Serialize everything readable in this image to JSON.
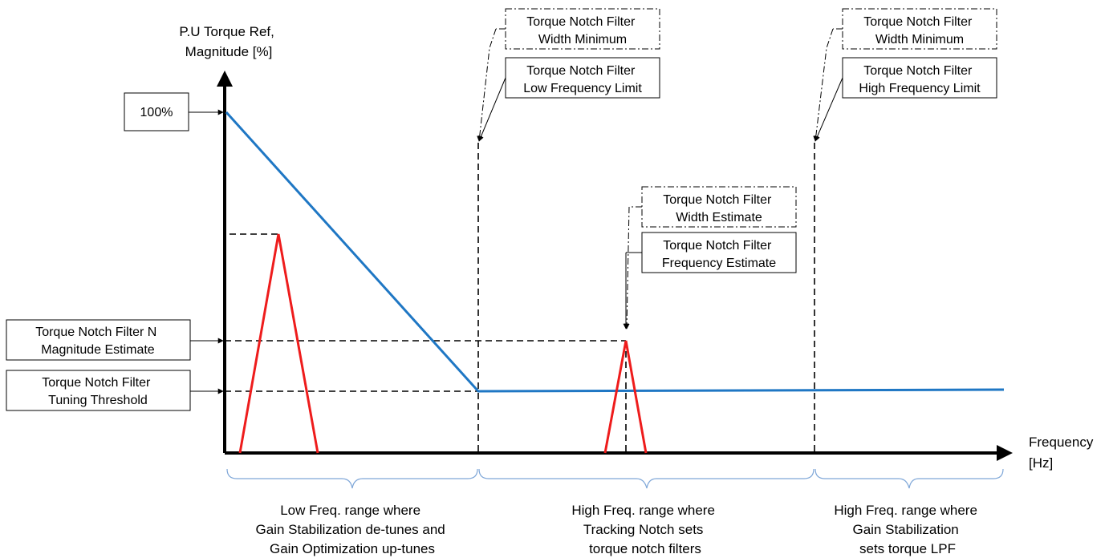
{
  "axes": {
    "y_label": [
      "P.U Torque Ref,",
      "Magnitude [%]"
    ],
    "x_label": [
      "Frequency",
      "[Hz]"
    ]
  },
  "labels": {
    "hundred_percent": "100%",
    "magnitude_estimate": [
      "Torque Notch Filter N",
      "Magnitude Estimate"
    ],
    "tuning_threshold": [
      "Torque Notch Filter",
      "Tuning Threshold"
    ],
    "width_min_low": [
      "Torque Notch Filter",
      "Width Minimum"
    ],
    "low_freq_limit": [
      "Torque Notch Filter",
      "Low Frequency Limit"
    ],
    "width_min_high": [
      "Torque Notch Filter",
      "Width Minimum"
    ],
    "high_freq_limit": [
      "Torque Notch Filter",
      "High Frequency Limit"
    ],
    "width_estimate": [
      "Torque Notch Filter",
      "Width Estimate"
    ],
    "frequency_estimate": [
      "Torque Notch Filter",
      "Frequency Estimate"
    ]
  },
  "ranges": {
    "low": [
      "Low Freq. range where",
      "Gain Stabilization de-tunes and",
      "Gain Optimization up-tunes"
    ],
    "mid": [
      "High Freq. range where",
      "Tracking Notch sets",
      "torque notch filters"
    ],
    "high": [
      "High Freq. range where",
      "Gain Stabilization",
      "sets torque LPF"
    ]
  },
  "colors": {
    "response_line": "#1f77c4",
    "peak_line": "#ee1c1c",
    "brace": "#7fa7d8",
    "axis": "#000000"
  }
}
